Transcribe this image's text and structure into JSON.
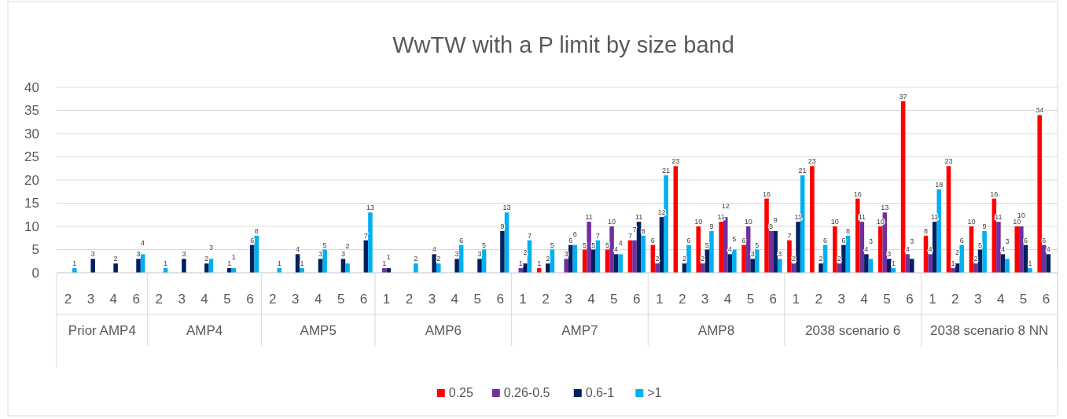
{
  "chart_data": {
    "type": "bar",
    "title": "WwTW with a P limit by size band",
    "categories": [
      "2",
      "3",
      "4",
      "6",
      "2",
      "3",
      "4",
      "5",
      "6",
      "2",
      "3",
      "4",
      "5",
      "6",
      "1",
      "2",
      "3",
      "4",
      "5",
      "6",
      "1",
      "2",
      "3",
      "4",
      "5",
      "6",
      "1",
      "2",
      "3",
      "4",
      "5",
      "6",
      "1",
      "2",
      "3",
      "4",
      "5",
      "6",
      "1",
      "2",
      "3",
      "4",
      "5",
      "6"
    ],
    "annotations": [
      "Prior AMP4",
      "AMP4",
      "AMP5",
      "AMP6",
      "AMP7",
      "AMP8",
      "2038 scenario 6",
      "2038 scenario 8 NN"
    ],
    "series": [
      {
        "name": "0.25",
        "color": "#ff0000",
        "values": [
          null,
          null,
          null,
          null,
          null,
          null,
          null,
          null,
          null,
          null,
          null,
          null,
          null,
          null,
          null,
          null,
          null,
          null,
          null,
          null,
          null,
          1,
          null,
          5,
          5,
          7,
          6,
          23,
          10,
          11,
          6,
          16,
          7,
          23,
          10,
          16,
          10,
          37,
          8,
          23,
          10,
          16,
          10,
          34
        ]
      },
      {
        "name": "0.26-0.5",
        "color": "#7030a0",
        "values": [
          null,
          null,
          null,
          null,
          null,
          null,
          null,
          null,
          null,
          null,
          null,
          null,
          null,
          null,
          1,
          null,
          null,
          null,
          null,
          null,
          1,
          null,
          3,
          11,
          10,
          7,
          2,
          null,
          2,
          12,
          10,
          9,
          2,
          null,
          2,
          11,
          13,
          4,
          4,
          1,
          2,
          11,
          10,
          6
        ]
      },
      {
        "name": "0.6-1",
        "color": "#002060",
        "values": [
          null,
          3,
          2,
          3,
          null,
          3,
          2,
          1,
          6,
          null,
          4,
          3,
          3,
          7,
          1,
          null,
          4,
          3,
          3,
          9,
          2,
          2,
          6,
          5,
          4,
          11,
          12,
          2,
          5,
          4,
          3,
          9,
          11,
          2,
          6,
          4,
          3,
          3,
          11,
          2,
          5,
          4,
          6,
          4
        ]
      },
      {
        "name": ">1",
        "color": "#00b0f0",
        "values": [
          1,
          null,
          null,
          4,
          1,
          null,
          3,
          1,
          8,
          1,
          1,
          5,
          2,
          13,
          null,
          2,
          2,
          6,
          5,
          13,
          7,
          5,
          6,
          7,
          4,
          8,
          21,
          6,
          9,
          5,
          5,
          3,
          21,
          6,
          8,
          3,
          1,
          null,
          18,
          6,
          9,
          3,
          1,
          null
        ]
      }
    ],
    "ylim": [
      0,
      40
    ],
    "yticks": [
      0,
      5,
      10,
      15,
      20,
      25,
      30,
      35,
      40
    ],
    "grid": "y",
    "legend": "bottom",
    "data_labels": true
  }
}
